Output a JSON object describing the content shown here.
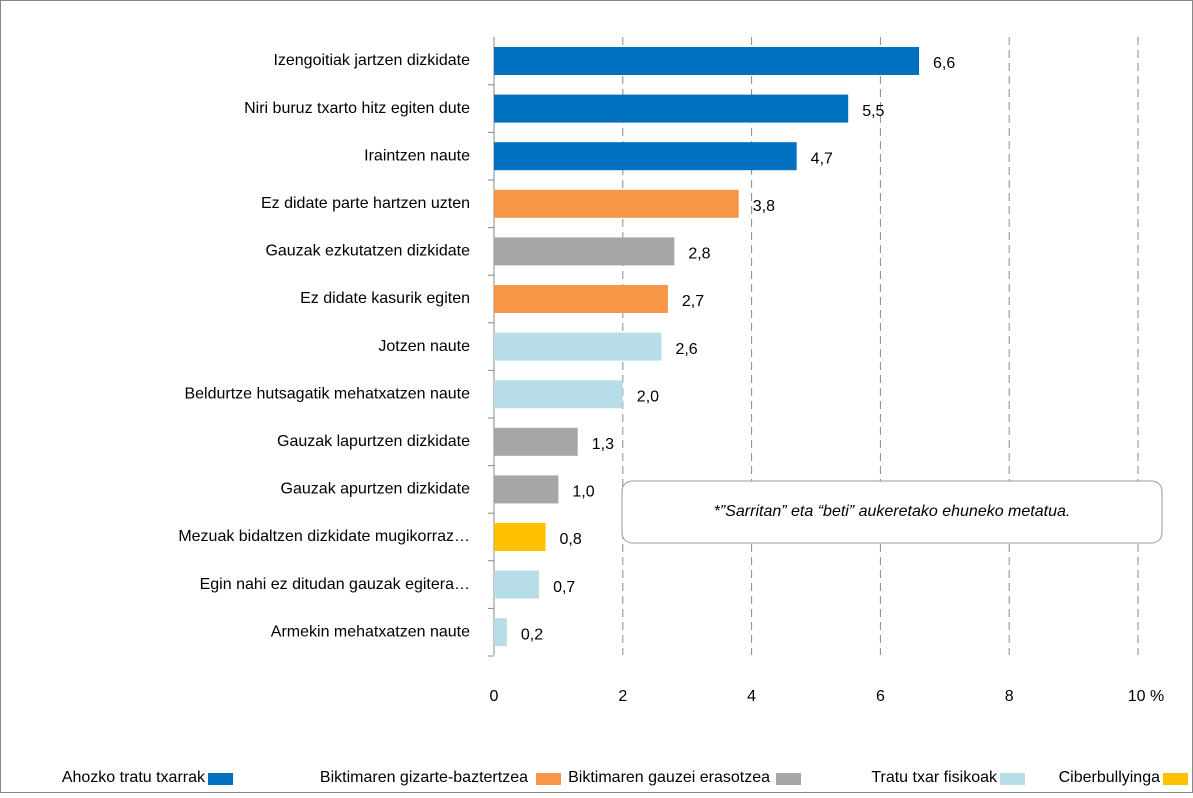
{
  "chart_data": {
    "type": "bar",
    "orientation": "horizontal",
    "categories": [
      "Izengoitiak jartzen dizkidate",
      "Niri buruz txarto hitz egiten dute",
      "Iraintzen naute",
      "Ez didate parte hartzen uzten",
      "Gauzak ezkutatzen dizkidate",
      "Ez didate kasurik egiten",
      "Jotzen naute",
      "Beldurtze hutsagatik mehatxatzen naute",
      "Gauzak lapurtzen dizkidate",
      "Gauzak apurtzen dizkidate",
      "Mezuak bidaltzen dizkidate mugikorraz…",
      "Egin nahi ez ditudan gauzak egitera…",
      "Armekin mehatxatzen naute"
    ],
    "values": [
      6.6,
      5.5,
      4.7,
      3.8,
      2.8,
      2.7,
      2.6,
      2.0,
      1.3,
      1.0,
      0.8,
      0.7,
      0.2
    ],
    "value_labels": [
      "6,6",
      "5,5",
      "4,7",
      "3,8",
      "2,8",
      "2,7",
      "2,6",
      "2,0",
      "1,3",
      "1,0",
      "0,8",
      "0,7",
      "0,2"
    ],
    "colors": [
      "#0070c0",
      "#0070c0",
      "#0070c0",
      "#f79646",
      "#a6a6a6",
      "#f79646",
      "#b7dde8",
      "#b7dde8",
      "#a6a6a6",
      "#a6a6a6",
      "#ffc000",
      "#b7dde8",
      "#b7dde8"
    ],
    "legend": [
      {
        "name": "Ahozko tratu txarrak",
        "color": "#0070c0"
      },
      {
        "name": "Biktimaren gizarte-baztertzea",
        "color": "#f79646"
      },
      {
        "name": "Biktimaren gauzei erasotzea",
        "color": "#a6a6a6"
      },
      {
        "name": "Tratu txar fisikoak",
        "color": "#b7dde8"
      },
      {
        "name": "Ciberbullyinga",
        "color": "#ffc000"
      }
    ],
    "xlim": [
      0,
      10
    ],
    "xticks": [
      0,
      2,
      4,
      6,
      8,
      {
        "value": 10,
        "label": "10 %"
      }
    ],
    "grid": true,
    "annotation": "*”Sarritan” eta “beti” aukeretako ehuneko metatua."
  }
}
